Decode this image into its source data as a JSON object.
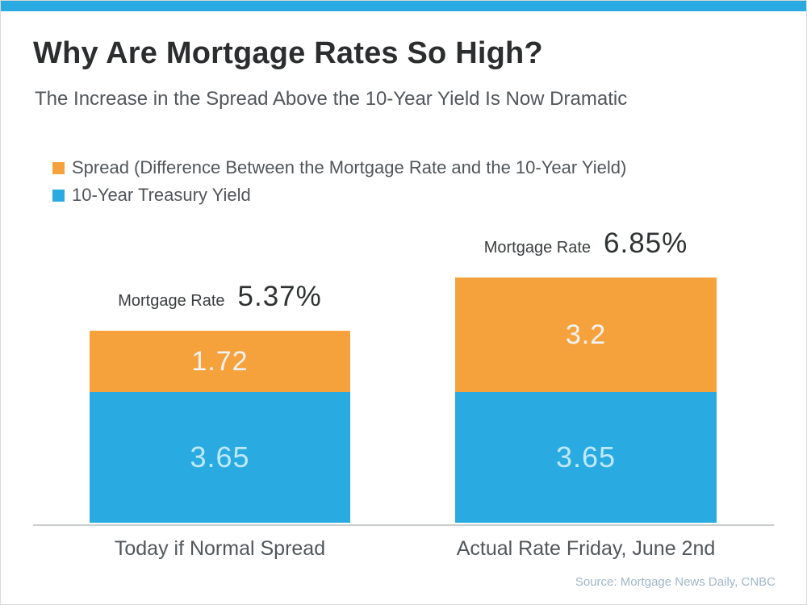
{
  "colors": {
    "accent_blue": "#29ABE2",
    "accent_orange": "#F6A23C",
    "axis_gray": "#c9cccd"
  },
  "chart_data": {
    "type": "bar",
    "stacked": true,
    "title": "Why Are Mortgage Rates So High?",
    "subtitle": "The Increase in the Spread Above the 10-Year Yield Is Now Dramatic",
    "source": "Source: Mortgage News Daily, CNBC",
    "categories": [
      "Today if Normal Spread",
      "Actual Rate Friday, June 2nd"
    ],
    "series": [
      {
        "name": "10-Year Treasury Yield",
        "color": "#29ABE2",
        "values": [
          3.65,
          3.65
        ]
      },
      {
        "name": "Spread (Difference Between the Mortgage Rate and the 10-Year Yield)",
        "color": "#F6A23C",
        "values": [
          1.72,
          3.2
        ]
      }
    ],
    "totals": [
      {
        "label": "Mortgage Rate",
        "value": "5.37%"
      },
      {
        "label": "Mortgage Rate",
        "value": "6.85%"
      }
    ],
    "legend": [
      {
        "label": "Spread (Difference Between the Mortgage Rate and the 10-Year Yield)",
        "color": "#F6A23C"
      },
      {
        "label": "10-Year Treasury Yield",
        "color": "#29ABE2"
      }
    ],
    "ylim": [
      0,
      7.5
    ],
    "grid": false,
    "legend_position": "top-left"
  }
}
